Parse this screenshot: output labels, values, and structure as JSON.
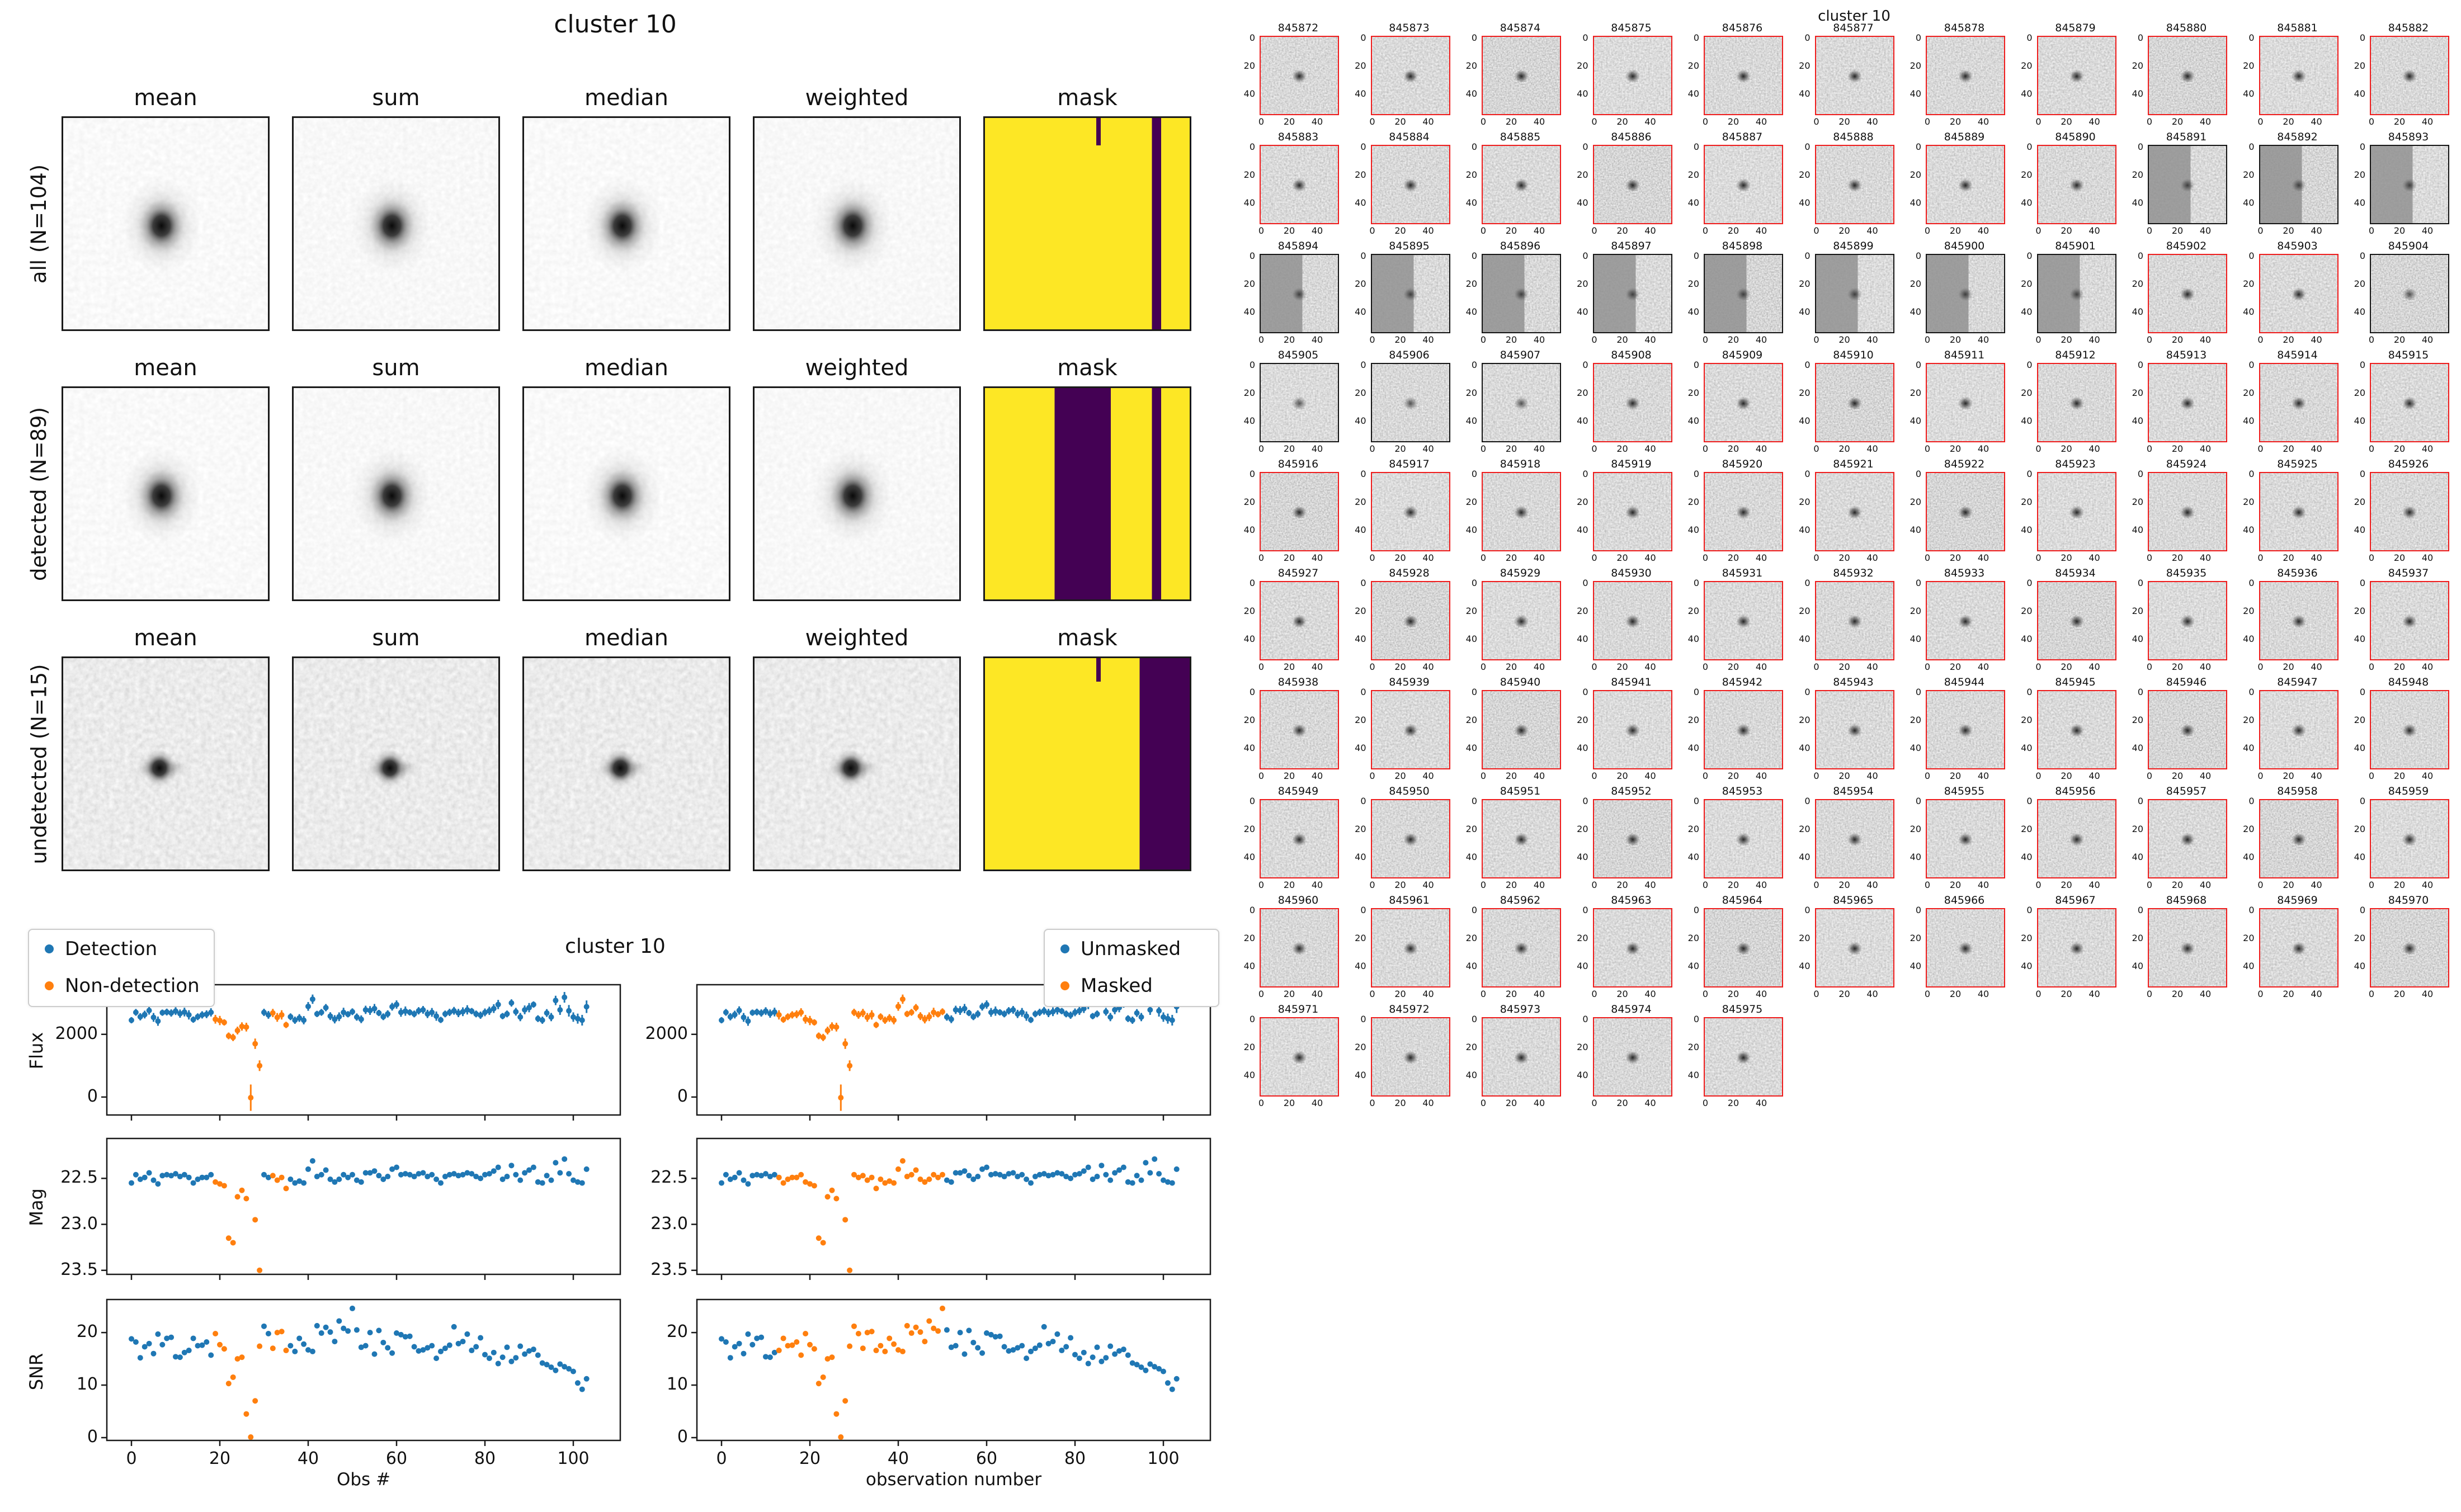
{
  "top_figure": {
    "suptitle": "cluster 10",
    "columns": [
      "mean",
      "sum",
      "median",
      "weighted",
      "mask"
    ],
    "rows": [
      {
        "label": "all (N=104)"
      },
      {
        "label": "detected (N=89)"
      },
      {
        "label": "undetected (N=15)"
      }
    ],
    "mask_colors": {
      "yellow": "#fde725",
      "purple": "#440154"
    },
    "mask_panels": [
      {
        "row": "all",
        "stripes": [
          [
            0.815,
            0.86
          ]
        ],
        "notch": [
          0.545,
          0.02,
          0.13
        ]
      },
      {
        "row": "detected",
        "stripes": [
          [
            0.34,
            0.615
          ],
          [
            0.815,
            0.86
          ]
        ],
        "notch": null
      },
      {
        "row": "undetected",
        "stripes": [
          [
            0.755,
            1.0
          ]
        ],
        "notch": [
          0.545,
          0.02,
          0.11
        ]
      }
    ]
  },
  "chart_data": {
    "type": "scatter",
    "title": "cluster 10",
    "x_label_left": "Obs #",
    "x_label_right": "observation number",
    "ylabels": [
      "Flux",
      "Mag",
      "SNR"
    ],
    "xtick_labels": [
      "0",
      "20",
      "40",
      "60",
      "80",
      "100"
    ],
    "xticks": [
      0,
      20,
      40,
      60,
      80,
      100
    ],
    "ytick_labels": {
      "flux": [
        "0",
        "2000"
      ],
      "mag": [
        "22.5",
        "23.0",
        "23.5"
      ],
      "snr": [
        "0",
        "10",
        "20"
      ]
    },
    "legend_left": [
      "Detection",
      "Non-detection"
    ],
    "legend_right": [
      "Unmasked",
      "Masked"
    ],
    "colors": {
      "primary": "#1f77b4",
      "secondary": "#ff7f0e"
    },
    "x": [
      0,
      1,
      2,
      3,
      4,
      5,
      6,
      7,
      8,
      9,
      10,
      11,
      12,
      13,
      14,
      15,
      16,
      17,
      18,
      19,
      20,
      21,
      22,
      23,
      24,
      25,
      26,
      27,
      28,
      29,
      30,
      31,
      32,
      33,
      34,
      35,
      36,
      37,
      38,
      39,
      40,
      41,
      42,
      43,
      44,
      45,
      46,
      47,
      48,
      49,
      50,
      51,
      52,
      53,
      54,
      55,
      56,
      57,
      58,
      59,
      60,
      61,
      62,
      63,
      64,
      65,
      66,
      67,
      68,
      69,
      70,
      71,
      72,
      73,
      74,
      75,
      76,
      77,
      78,
      79,
      80,
      81,
      82,
      83,
      84,
      85,
      86,
      87,
      88,
      89,
      90,
      91,
      92,
      93,
      94,
      95,
      96,
      97,
      98,
      99,
      100,
      101,
      102,
      103
    ],
    "flux": [
      2450,
      2700,
      2560,
      2630,
      2760,
      2540,
      2420,
      2690,
      2710,
      2680,
      2740,
      2660,
      2710,
      2620,
      2470,
      2560,
      2620,
      2640,
      2700,
      2480,
      2440,
      2380,
      1950,
      1900,
      2120,
      2250,
      2230,
      -20,
      1700,
      1000,
      2700,
      2620,
      2680,
      2540,
      2620,
      2300,
      2560,
      2450,
      2520,
      2450,
      2890,
      3120,
      2650,
      2700,
      2850,
      2580,
      2480,
      2560,
      2700,
      2640,
      2720,
      2550,
      2480,
      2780,
      2760,
      2820,
      2680,
      2560,
      2650,
      2880,
      2950,
      2700,
      2740,
      2700,
      2650,
      2750,
      2780,
      2650,
      2700,
      2580,
      2460,
      2650,
      2700,
      2750,
      2680,
      2720,
      2780,
      2740,
      2650,
      2610,
      2700,
      2750,
      2820,
      2950,
      2580,
      2650,
      3000,
      2720,
      2550,
      2780,
      2850,
      2950,
      2500,
      2450,
      2680,
      2550,
      3080,
      2780,
      3180,
      2750,
      2550,
      2500,
      2450,
      2880
    ],
    "flux_err": [
      100,
      108,
      116,
      124,
      132,
      140,
      148,
      100,
      108,
      116,
      124,
      132,
      140,
      148,
      100,
      108,
      116,
      124,
      132,
      140,
      148,
      100,
      108,
      116,
      124,
      132,
      140,
      420,
      165,
      170,
      116,
      124,
      132,
      140,
      148,
      100,
      108,
      116,
      124,
      132,
      140,
      148,
      100,
      108,
      116,
      124,
      132,
      140,
      148,
      100,
      108,
      116,
      124,
      132,
      140,
      148,
      100,
      108,
      116,
      124,
      132,
      140,
      148,
      100,
      108,
      116,
      124,
      132,
      140,
      148,
      100,
      108,
      116,
      124,
      132,
      140,
      148,
      100,
      108,
      116,
      124,
      132,
      140,
      148,
      100,
      108,
      116,
      124,
      132,
      140,
      148,
      100,
      108,
      116,
      124,
      132,
      150,
      160,
      170,
      185,
      150,
      160,
      170,
      200
    ],
    "mag": [
      22.55,
      22.46,
      22.51,
      22.49,
      22.44,
      22.52,
      22.56,
      22.47,
      22.46,
      22.47,
      22.45,
      22.48,
      22.46,
      22.49,
      22.55,
      22.51,
      22.49,
      22.49,
      22.46,
      22.54,
      22.56,
      22.58,
      23.15,
      23.2,
      22.7,
      22.63,
      22.72,
      null,
      22.95,
      23.5,
      22.46,
      22.49,
      22.47,
      22.52,
      22.49,
      22.61,
      22.51,
      22.55,
      22.53,
      22.55,
      22.4,
      22.31,
      22.48,
      22.46,
      22.41,
      22.51,
      22.54,
      22.51,
      22.46,
      22.49,
      22.46,
      22.52,
      22.54,
      22.44,
      22.44,
      22.42,
      22.47,
      22.51,
      22.48,
      22.4,
      22.38,
      22.46,
      22.45,
      22.46,
      22.48,
      22.45,
      22.44,
      22.48,
      22.46,
      22.51,
      22.55,
      22.48,
      22.46,
      22.45,
      22.47,
      22.46,
      22.44,
      22.45,
      22.48,
      22.5,
      22.46,
      22.45,
      22.42,
      22.38,
      22.51,
      22.48,
      22.36,
      22.46,
      22.52,
      22.44,
      22.41,
      22.38,
      22.54,
      22.55,
      22.47,
      22.52,
      22.33,
      22.44,
      22.29,
      22.45,
      22.52,
      22.54,
      22.55,
      22.4
    ],
    "snr": [
      18.8,
      18.2,
      15.2,
      17.3,
      17.9,
      16.0,
      19.7,
      17.7,
      18.9,
      19.1,
      15.4,
      15.3,
      16.2,
      16.6,
      18.9,
      17.5,
      17.6,
      18.2,
      15.7,
      19.8,
      17.7,
      16.9,
      10.3,
      11.5,
      15.0,
      15.3,
      4.5,
      0.1,
      7.0,
      17.4,
      21.2,
      19.8,
      17.0,
      20.0,
      20.2,
      16.6,
      17.5,
      16.4,
      18.9,
      17.8,
      16.7,
      16.4,
      21.3,
      19.9,
      21.0,
      20.1,
      18.3,
      22.2,
      20.8,
      20.3,
      24.6,
      20.5,
      17.2,
      17.5,
      20.0,
      15.9,
      20.4,
      18.1,
      17.1,
      16.1,
      19.9,
      19.6,
      19.2,
      19.3,
      17.3,
      16.5,
      16.7,
      17.1,
      17.5,
      15.1,
      16.4,
      17.0,
      17.6,
      21.1,
      17.9,
      18.3,
      19.7,
      16.6,
      17.3,
      19.0,
      15.8,
      15.1,
      16.2,
      14.1,
      15.3,
      17.2,
      14.5,
      15.2,
      17.4,
      15.9,
      16.5,
      16.8,
      15.7,
      14.2,
      13.9,
      13.4,
      12.8,
      14.0,
      13.5,
      13.1,
      12.6,
      10.4,
      9.2,
      11.2
    ],
    "non_detection_indices": [
      19,
      20,
      21,
      22,
      23,
      24,
      25,
      26,
      27,
      28,
      29,
      32,
      33,
      34,
      35
    ],
    "masked_index_range": [
      13,
      50
    ],
    "axis_ranges": {
      "flux": [
        -590,
        3600
      ],
      "mag_top_bottom": [
        22.06,
        23.55
      ],
      "snr": [
        -0.64,
        26.4
      ]
    }
  },
  "right_figure": {
    "suptitle": "cluster 10",
    "stamp_tick_labels": [
      "0",
      "20",
      "40"
    ],
    "ids": [
      845872,
      845873,
      845874,
      845875,
      845876,
      845877,
      845878,
      845879,
      845880,
      845881,
      845882,
      845883,
      845884,
      845885,
      845886,
      845887,
      845888,
      845889,
      845890,
      845891,
      845892,
      845893,
      845894,
      845895,
      845896,
      845897,
      845898,
      845899,
      845900,
      845901,
      845902,
      845903,
      845904,
      845905,
      845906,
      845907,
      845908,
      845909,
      845910,
      845911,
      845912,
      845913,
      845914,
      845915,
      845916,
      845917,
      845918,
      845919,
      845920,
      845921,
      845922,
      845923,
      845924,
      845925,
      845926,
      845927,
      845928,
      845929,
      845930,
      845931,
      845932,
      845933,
      845934,
      845935,
      845936,
      845937,
      845938,
      845939,
      845940,
      845941,
      845942,
      845943,
      845944,
      845945,
      845946,
      845947,
      845948,
      845949,
      845950,
      845951,
      845952,
      845953,
      845954,
      845955,
      845956,
      845957,
      845958,
      845959,
      845960,
      845961,
      845962,
      845963,
      845964,
      845965,
      845966,
      845967,
      845968,
      845969,
      845970,
      845971,
      845972,
      845973,
      845974,
      845975
    ],
    "undetected_ids": [
      845891,
      845892,
      845893,
      845894,
      845895,
      845896,
      845897,
      845898,
      845899,
      845900,
      845901,
      845904,
      845905,
      845906,
      845907
    ],
    "flat_left_ids": [
      845891,
      845892,
      845893,
      845894,
      845895,
      845896,
      845897,
      845898,
      845899,
      845900,
      845901
    ],
    "border_colors": {
      "detected": "#ef1c1c",
      "undetected": "#141414"
    }
  }
}
